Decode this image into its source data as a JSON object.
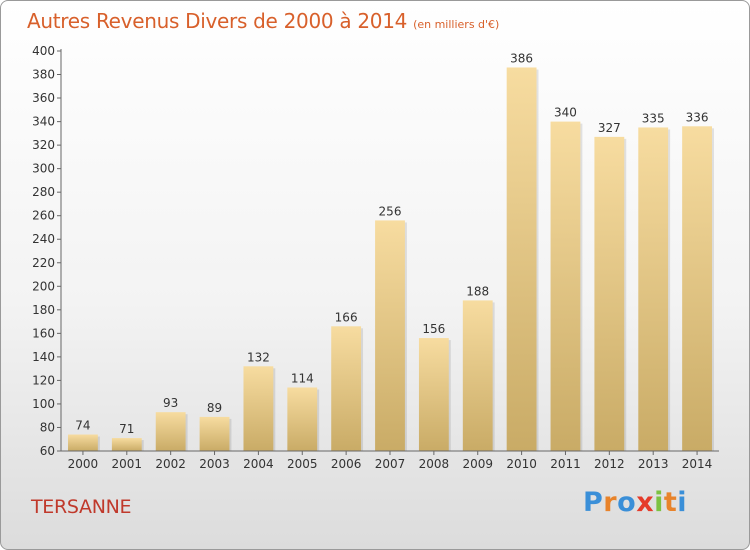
{
  "header": {
    "title": "Autres Revenus Divers de 2000 à 2014",
    "subtitle": "(en milliers d'€)"
  },
  "footer": {
    "commune": "TERSANNE",
    "logo_text": "Proxiti",
    "logo_colors": [
      "#3a8fd8",
      "#e8832a",
      "#3a8fd8",
      "#e53b2a",
      "#7cc242",
      "#e8832a",
      "#3a8fd8"
    ]
  },
  "colors": {
    "title": "#d8602b",
    "commune": "#c0392b",
    "bar_light": "#f7dca0",
    "bar_dark": "#c9ab66",
    "axis": "#666666"
  },
  "chart_data": {
    "type": "bar",
    "title": "Autres Revenus Divers de 2000 à 2014",
    "subtitle": "(en milliers d'€)",
    "categories": [
      "2000",
      "2001",
      "2002",
      "2003",
      "2004",
      "2005",
      "2006",
      "2007",
      "2008",
      "2009",
      "2010",
      "2011",
      "2012",
      "2013",
      "2014"
    ],
    "values": [
      74,
      71,
      93,
      89,
      132,
      114,
      166,
      256,
      156,
      188,
      386,
      340,
      327,
      335,
      336
    ],
    "data_labels": [
      "74",
      "71",
      "93",
      "89",
      "132",
      "114",
      "166",
      "256",
      "156",
      "188",
      "386",
      "340",
      "327",
      "335",
      "336"
    ],
    "ylim": [
      60,
      400
    ],
    "yticks": [
      60,
      80,
      100,
      120,
      140,
      160,
      180,
      200,
      220,
      240,
      260,
      280,
      300,
      320,
      340,
      360,
      380,
      400
    ],
    "grid": false,
    "legend": "none",
    "xlabel": "",
    "ylabel": ""
  }
}
